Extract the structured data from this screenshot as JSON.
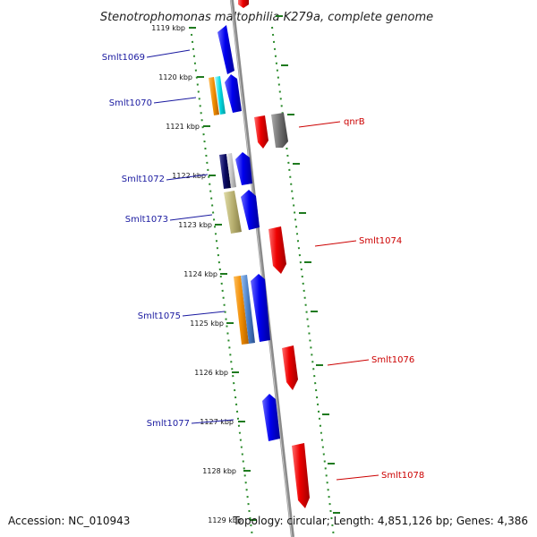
{
  "title": "Stenotrophomonas maltophilia K279a, complete genome",
  "accession": "Accession: NC_010943",
  "topology": "Topology: circular; Length: 4,851,126 bp; Genes: 4,386",
  "colors": {
    "axis": "#888888",
    "ruler_dots": "#2a8a2a",
    "ruler_ticks": "#1f7a1f",
    "forward_label": "#1a1aa0",
    "reverse_label": "#cc0000",
    "blue": "#0000ee",
    "red": "#ee0000"
  },
  "ticks": [
    {
      "label": "1119 kbp"
    },
    {
      "label": "1120 kbp"
    },
    {
      "label": "1121 kbp"
    },
    {
      "label": "1122 kbp"
    },
    {
      "label": "1123 kbp"
    },
    {
      "label": "1124 kbp"
    },
    {
      "label": "1125 kbp"
    },
    {
      "label": "1126 kbp"
    },
    {
      "label": "1127 kbp"
    },
    {
      "label": "1128 kbp"
    },
    {
      "label": "1129 kbp"
    }
  ],
  "genes_forward": [
    {
      "label": "Smlt1069",
      "color": "#0000ee"
    },
    {
      "label": "Smlt1070",
      "color": "#0000ee"
    },
    {
      "label": "Smlt1072",
      "color": "#0000ee"
    },
    {
      "label": "Smlt1073",
      "color": "#0000ee"
    },
    {
      "label": "Smlt1075",
      "color": "#0000ee"
    },
    {
      "label": "Smlt1077",
      "color": "#0000ee"
    }
  ],
  "genes_reverse": [
    {
      "label": "qnrB",
      "color": "#ee0000"
    },
    {
      "label": "Smlt1074",
      "color": "#ee0000"
    },
    {
      "label": "Smlt1076",
      "color": "#ee0000"
    },
    {
      "label": "Smlt1078",
      "color": "#ee0000"
    }
  ]
}
